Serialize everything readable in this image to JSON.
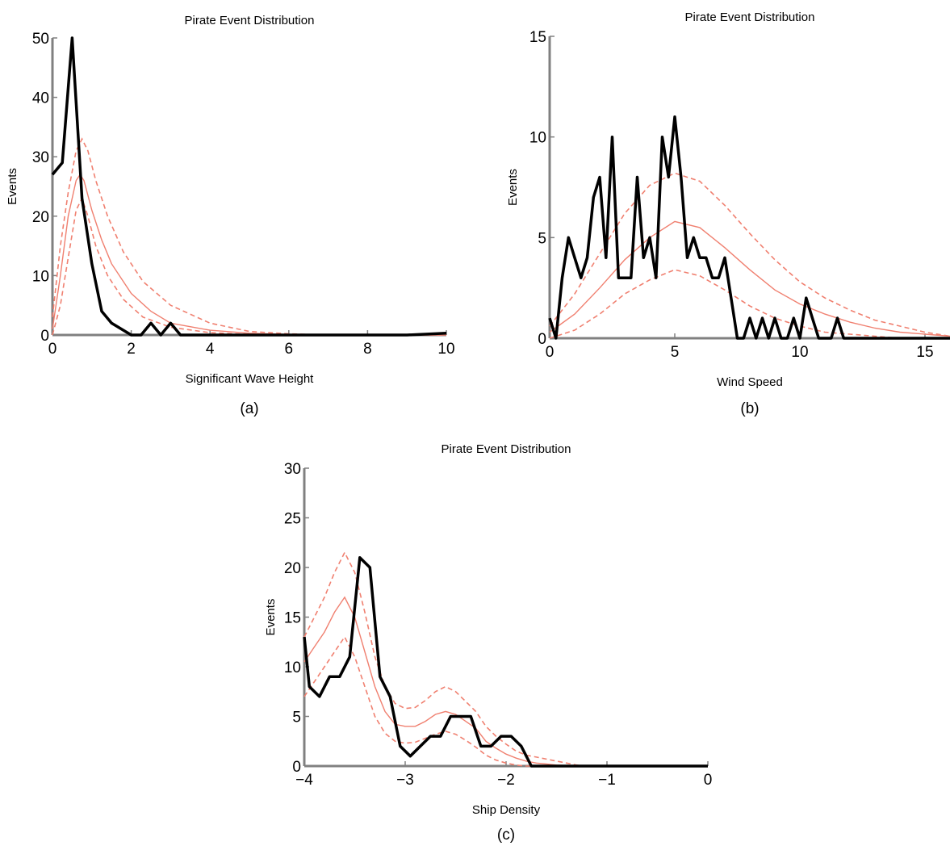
{
  "chart_data": [
    {
      "type": "line",
      "title": "Pirate Event Distribution",
      "xlabel": "Significant Wave Height",
      "ylabel": "Events",
      "caption": "(a)",
      "xlim": [
        0,
        10
      ],
      "ylim": [
        0,
        50
      ],
      "xticks": [
        "0",
        "2",
        "4",
        "6",
        "8",
        "10"
      ],
      "yticks": [
        "0",
        "10",
        "20",
        "30",
        "40",
        "50"
      ],
      "xtick_values": [
        0,
        2,
        4,
        6,
        8,
        10
      ],
      "ytick_values": [
        0,
        10,
        20,
        30,
        40,
        50
      ],
      "colors": {
        "observed": "#000000",
        "model": "#f08070"
      },
      "series": [
        {
          "style": "observed",
          "x": [
            0,
            0.25,
            0.5,
            0.75,
            1.0,
            1.25,
            1.5,
            1.75,
            2.0,
            2.25,
            2.5,
            2.75,
            3.0,
            3.25,
            3.5,
            4,
            5,
            6,
            7,
            8,
            9,
            10
          ],
          "y": [
            27,
            29,
            50,
            23,
            12,
            4,
            2,
            1,
            0,
            0,
            2,
            0,
            2,
            0,
            0,
            0,
            0,
            0,
            0,
            0,
            0,
            0.3
          ]
        },
        {
          "style": "mean",
          "x": [
            0,
            0.2,
            0.4,
            0.6,
            0.7,
            0.8,
            1.0,
            1.25,
            1.5,
            2.0,
            2.5,
            3,
            4,
            5,
            6,
            7,
            8,
            9,
            10
          ],
          "y": [
            1,
            10,
            20,
            26,
            27,
            26,
            21,
            16,
            12,
            7,
            4,
            2,
            0.8,
            0.3,
            0.1,
            0,
            0,
            0,
            0
          ]
        },
        {
          "style": "band",
          "x": [
            0,
            0.2,
            0.4,
            0.6,
            0.75,
            0.9,
            1.1,
            1.4,
            1.8,
            2.3,
            3,
            4,
            5,
            6,
            7,
            8,
            9,
            10
          ],
          "y": [
            3,
            15,
            24,
            31,
            33,
            31,
            26,
            20,
            14,
            9,
            5,
            2,
            0.6,
            0.2,
            0,
            0,
            0,
            0
          ]
        },
        {
          "style": "band",
          "x": [
            0,
            0.2,
            0.4,
            0.6,
            0.75,
            0.9,
            1.1,
            1.4,
            1.8,
            2.3,
            3,
            4,
            5,
            6,
            7,
            8,
            9,
            10
          ],
          "y": [
            0,
            5,
            13,
            21,
            23,
            20,
            15,
            10,
            6,
            3,
            1.3,
            0.4,
            0.1,
            0,
            0,
            0,
            0,
            0
          ]
        }
      ]
    },
    {
      "type": "line",
      "title": "Pirate Event Distribution",
      "xlabel": "Wind Speed",
      "ylabel": "Events",
      "caption": "(b)",
      "xlim": [
        0,
        16
      ],
      "ylim": [
        0,
        15
      ],
      "xticks": [
        "0",
        "5",
        "10",
        "15"
      ],
      "yticks": [
        "0",
        "5",
        "10",
        "15"
      ],
      "xtick_values": [
        0,
        5,
        10,
        15
      ],
      "ytick_values": [
        0,
        5,
        10,
        15
      ],
      "colors": {
        "observed": "#000000",
        "model": "#f08070"
      },
      "series": [
        {
          "style": "observed",
          "x": [
            0,
            0.25,
            0.5,
            0.75,
            1,
            1.25,
            1.5,
            1.75,
            2,
            2.25,
            2.5,
            2.75,
            3,
            3.25,
            3.5,
            3.75,
            4,
            4.25,
            4.5,
            4.75,
            5,
            5.25,
            5.5,
            5.75,
            6,
            6.25,
            6.5,
            6.75,
            7,
            7.25,
            7.5,
            7.75,
            8,
            8.25,
            8.5,
            8.75,
            9,
            9.25,
            9.5,
            9.75,
            10,
            10.25,
            10.5,
            10.75,
            11,
            11.25,
            11.5,
            11.75,
            12,
            13,
            14,
            15,
            16
          ],
          "y": [
            1,
            0,
            3,
            5,
            4,
            3,
            4,
            7,
            8,
            4,
            10,
            3,
            3,
            3,
            8,
            4,
            5,
            3,
            10,
            8,
            11,
            8,
            4,
            5,
            4,
            4,
            3,
            3,
            4,
            2,
            0,
            0,
            1,
            0,
            1,
            0,
            1,
            0,
            0,
            1,
            0,
            2,
            1,
            0,
            0,
            0,
            1,
            0,
            0,
            0,
            0,
            0,
            0
          ]
        },
        {
          "style": "mean",
          "x": [
            0,
            1,
            2,
            3,
            4,
            5,
            6,
            7,
            8,
            9,
            10,
            11,
            12,
            13,
            14,
            15,
            16
          ],
          "y": [
            0.3,
            1.2,
            2.5,
            3.9,
            5.0,
            5.8,
            5.5,
            4.5,
            3.4,
            2.4,
            1.7,
            1.2,
            0.8,
            0.5,
            0.3,
            0.2,
            0.1
          ]
        },
        {
          "style": "band",
          "x": [
            0,
            1,
            2,
            3,
            4,
            5,
            6,
            7,
            8,
            9,
            10,
            11,
            12,
            13,
            14,
            15,
            16
          ],
          "y": [
            0.6,
            2.2,
            4.2,
            6.2,
            7.6,
            8.2,
            7.8,
            6.6,
            5.2,
            3.9,
            2.8,
            2.0,
            1.4,
            0.9,
            0.6,
            0.3,
            0.1
          ]
        },
        {
          "style": "band",
          "x": [
            0,
            1,
            2,
            3,
            4,
            5,
            6,
            7,
            8,
            9,
            10,
            11,
            12,
            13,
            14,
            15,
            16
          ],
          "y": [
            0,
            0.4,
            1.2,
            2.2,
            2.9,
            3.4,
            3.1,
            2.4,
            1.6,
            1.0,
            0.6,
            0.3,
            0.2,
            0.1,
            0,
            0,
            0
          ]
        }
      ]
    },
    {
      "type": "line",
      "title": "Pirate Event Distribution",
      "xlabel": "Ship Density",
      "ylabel": "Events",
      "caption": "(c)",
      "xlim": [
        -4,
        0
      ],
      "ylim": [
        0,
        30
      ],
      "xticks": [
        "−4",
        "−3",
        "−2",
        "−1",
        "0"
      ],
      "yticks": [
        "0",
        "5",
        "10",
        "15",
        "20",
        "25",
        "30"
      ],
      "xtick_values": [
        -4,
        -3,
        -2,
        -1,
        0
      ],
      "ytick_values": [
        0,
        5,
        10,
        15,
        20,
        25,
        30
      ],
      "colors": {
        "observed": "#000000",
        "model": "#f08070"
      },
      "series": [
        {
          "style": "observed",
          "x": [
            -4.0,
            -3.95,
            -3.85,
            -3.75,
            -3.65,
            -3.55,
            -3.45,
            -3.35,
            -3.25,
            -3.15,
            -3.05,
            -2.95,
            -2.85,
            -2.75,
            -2.65,
            -2.55,
            -2.45,
            -2.35,
            -2.25,
            -2.15,
            -2.05,
            -1.95,
            -1.85,
            -1.75,
            -1.65,
            -1.55,
            -1.45,
            -1.35,
            -1.0,
            0
          ],
          "y": [
            13,
            8,
            7,
            9,
            9,
            11,
            21,
            20,
            9,
            7,
            2,
            1,
            2,
            3,
            3,
            5,
            5,
            5,
            2,
            2,
            3,
            3,
            2,
            0,
            0,
            0,
            0,
            0,
            0,
            0
          ]
        },
        {
          "style": "mean",
          "x": [
            -4,
            -3.9,
            -3.8,
            -3.7,
            -3.6,
            -3.5,
            -3.4,
            -3.3,
            -3.2,
            -3.1,
            -3.0,
            -2.9,
            -2.8,
            -2.7,
            -2.6,
            -2.5,
            -2.4,
            -2.3,
            -2.2,
            -2.1,
            -2.0,
            -1.9,
            -1.8,
            -1.7,
            -1.6,
            -1.5,
            -1.4,
            -1.3,
            -1.2,
            -1.0,
            0
          ],
          "y": [
            10.5,
            12,
            13.5,
            15.5,
            17,
            15,
            11.5,
            8,
            5.5,
            4.2,
            4.0,
            4.0,
            4.5,
            5.2,
            5.5,
            5.2,
            4.5,
            3.8,
            2.5,
            1.8,
            1.2,
            0.8,
            0.5,
            0.3,
            0.2,
            0.1,
            0.05,
            0,
            0,
            0,
            0
          ]
        },
        {
          "style": "band",
          "x": [
            -4,
            -3.9,
            -3.8,
            -3.7,
            -3.6,
            -3.5,
            -3.4,
            -3.3,
            -3.2,
            -3.1,
            -3.0,
            -2.9,
            -2.8,
            -2.7,
            -2.6,
            -2.5,
            -2.4,
            -2.3,
            -2.2,
            -2.1,
            -2.0,
            -1.9,
            -1.8,
            -1.7,
            -1.6,
            -1.5,
            -1.4,
            -1.3,
            -1.2,
            -1.0,
            0
          ],
          "y": [
            13,
            15,
            17,
            19.5,
            21.5,
            19.5,
            15.5,
            11,
            8,
            6.3,
            5.8,
            5.9,
            6.6,
            7.5,
            8,
            7.5,
            6.5,
            5.5,
            4,
            3,
            2.2,
            1.5,
            1.1,
            0.9,
            0.7,
            0.5,
            0.3,
            0.1,
            0,
            0,
            0
          ]
        },
        {
          "style": "band",
          "x": [
            -4,
            -3.9,
            -3.8,
            -3.7,
            -3.6,
            -3.5,
            -3.4,
            -3.3,
            -3.2,
            -3.1,
            -3.0,
            -2.9,
            -2.8,
            -2.7,
            -2.6,
            -2.5,
            -2.4,
            -2.3,
            -2.2,
            -2.1,
            -2.0,
            -1.9,
            -1.8,
            -1.7,
            -1.6,
            -1.5,
            -1.4,
            -1.3,
            -1.2,
            -1.0,
            0
          ],
          "y": [
            7,
            8.5,
            10,
            11.5,
            13,
            11,
            8,
            5,
            3.3,
            2.5,
            2.3,
            2.4,
            2.8,
            3.2,
            3.5,
            3.2,
            2.6,
            1.9,
            1.1,
            0.6,
            0.3,
            0.1,
            0,
            0,
            0,
            0,
            0,
            0,
            0,
            0,
            0
          ]
        }
      ]
    }
  ]
}
